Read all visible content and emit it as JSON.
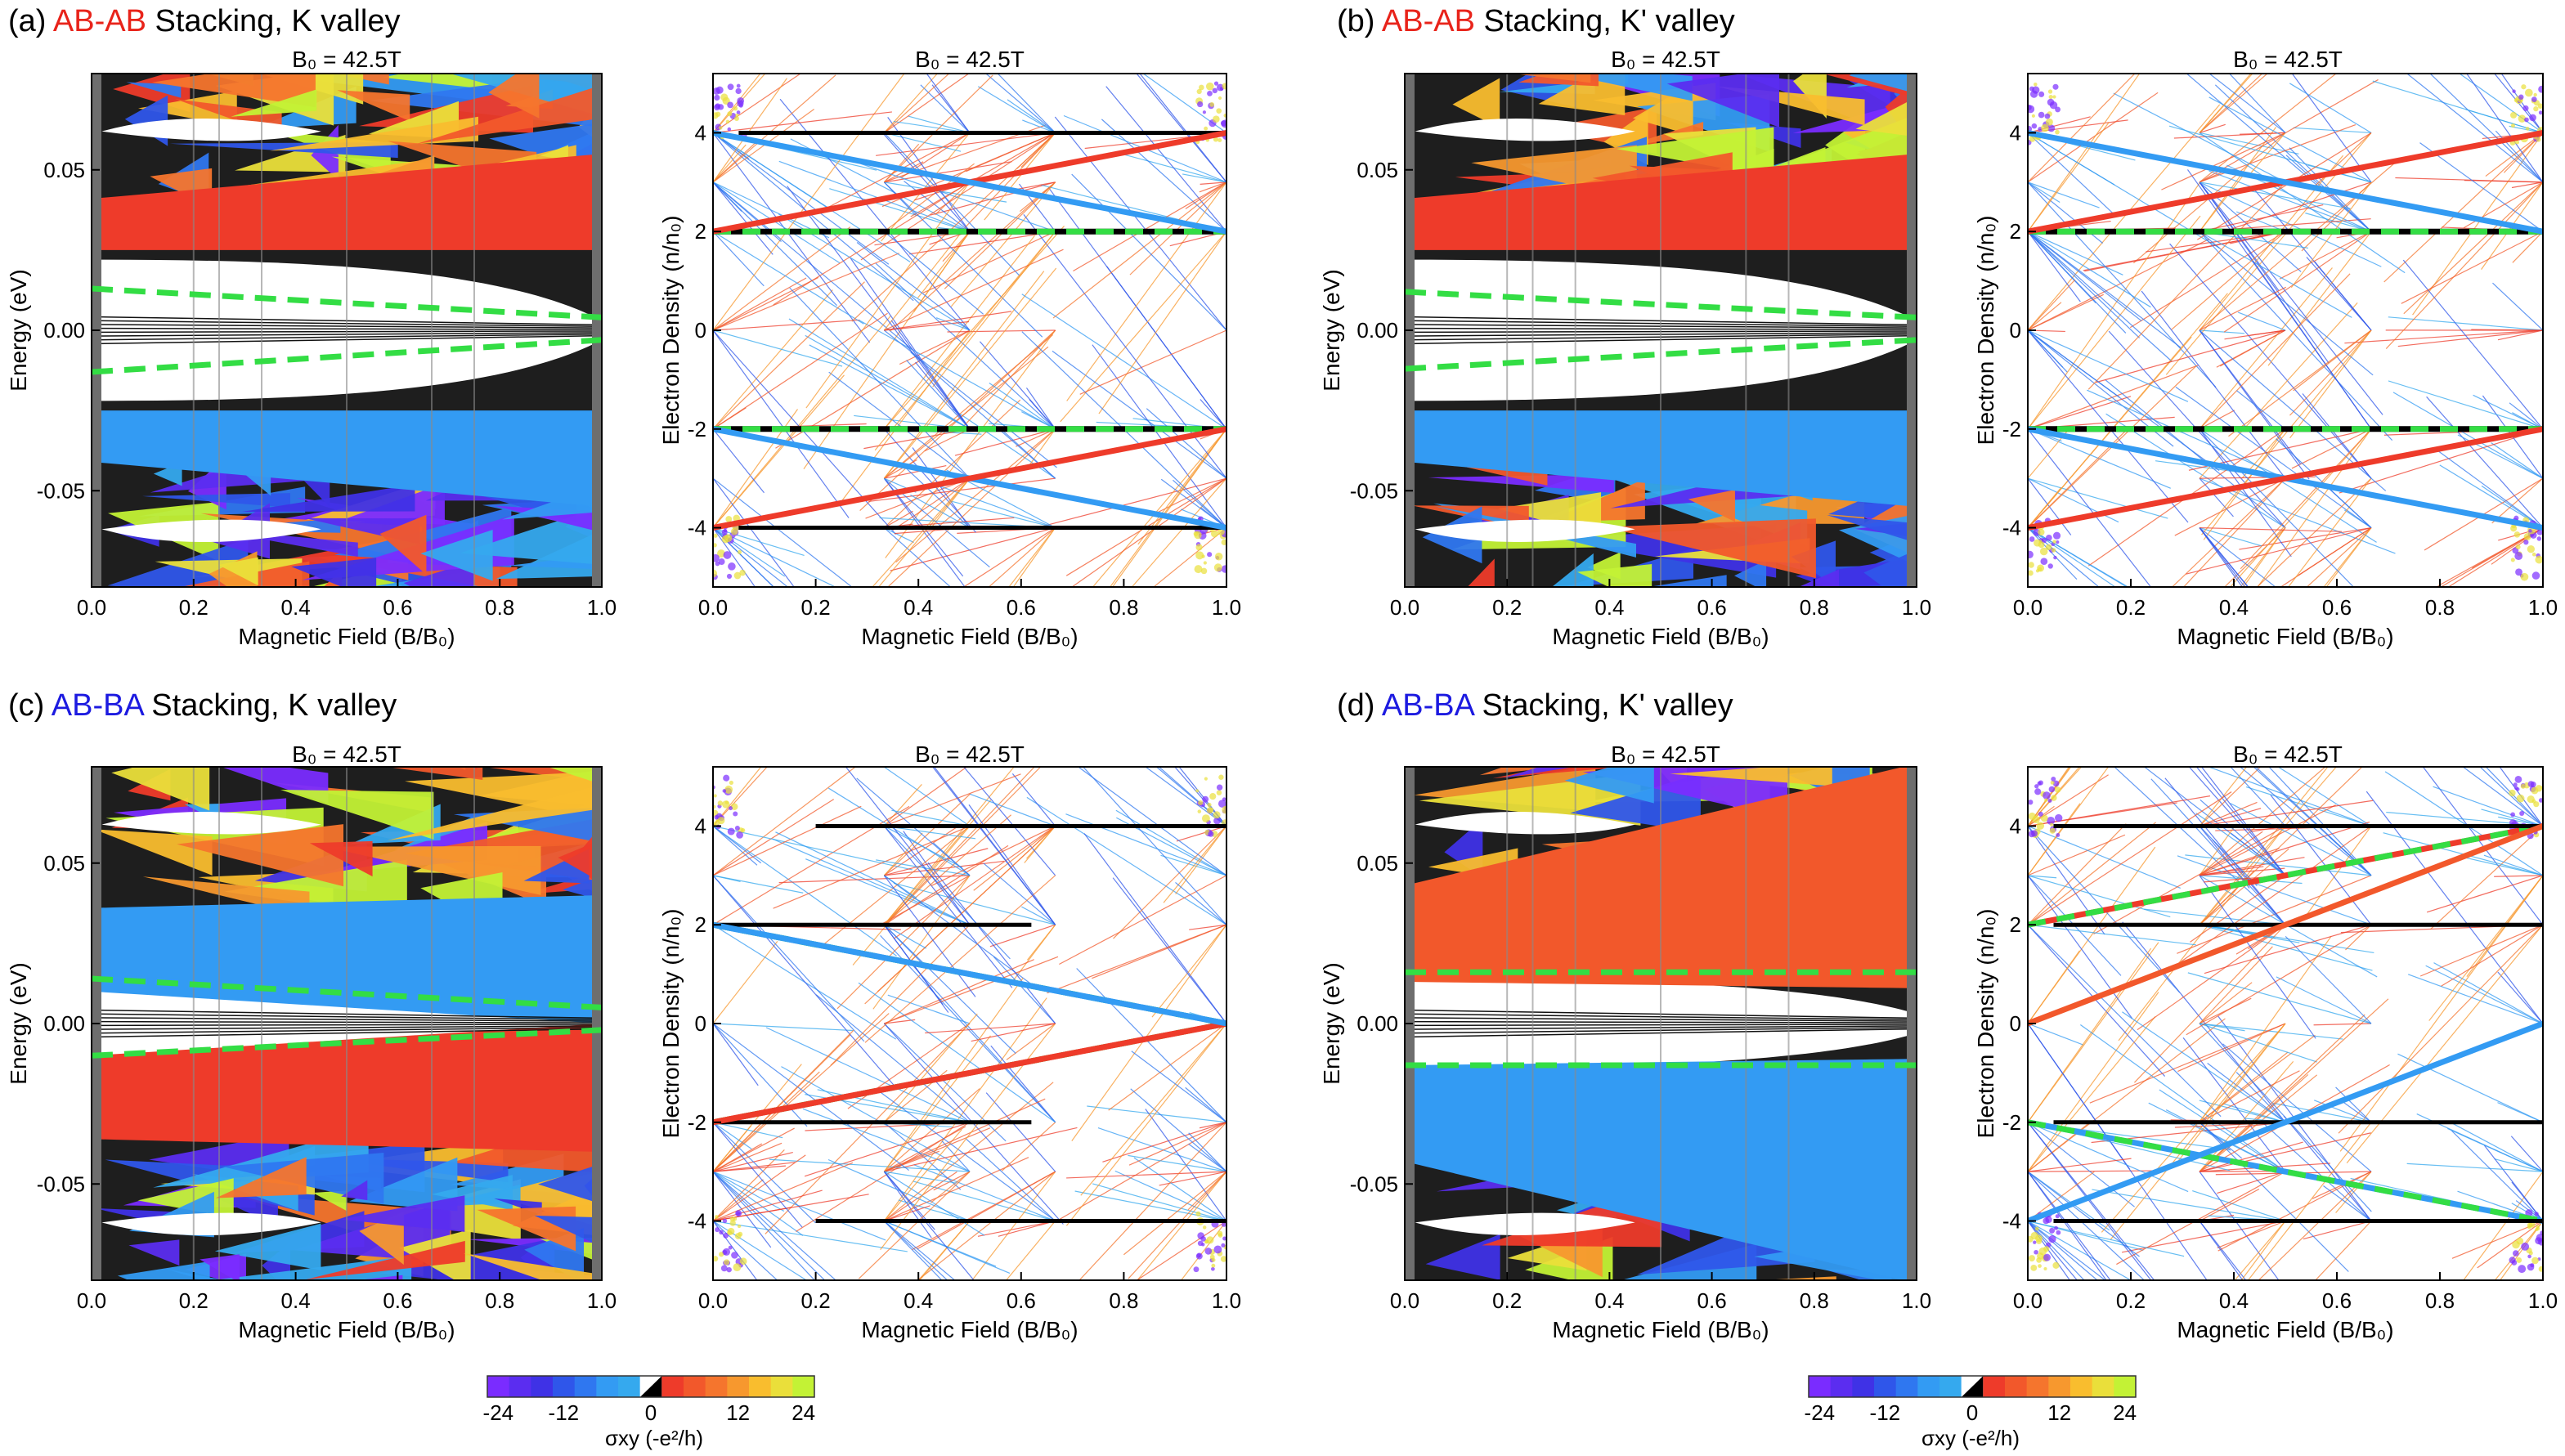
{
  "colors": {
    "neg24": "#7a2cff",
    "neg20": "#5b2df0",
    "neg16": "#3f32e6",
    "neg12": "#2f56ea",
    "neg8": "#2f77f0",
    "neg4": "#339bf3",
    "neg1": "#35a9ee",
    "pos1": "#ee3b2a",
    "pos4": "#f2582b",
    "pos8": "#f5752d",
    "pos12": "#f7982e",
    "pos16": "#f9bd2e",
    "pos20": "#eadf3a",
    "pos24": "#c3f235",
    "red_text": "#e8231a",
    "blue_text": "#1c1ae0",
    "green_dash": "#33dd44",
    "frame_gray": "#6e6e6e"
  },
  "panels": [
    {
      "id": "a",
      "prefix": "(a)",
      "stacking": "AB-AB",
      "suffix": "Stacking, K valley",
      "stacking_color": "red"
    },
    {
      "id": "b",
      "prefix": "(b)",
      "stacking": "AB-AB",
      "suffix": "Stacking, K' valley",
      "stacking_color": "red"
    },
    {
      "id": "c",
      "prefix": "(c)",
      "stacking": "AB-BA",
      "suffix": "Stacking, K valley",
      "stacking_color": "blue"
    },
    {
      "id": "d",
      "prefix": "(d)",
      "stacking": "AB-BA",
      "suffix": "Stacking, K' valley",
      "stacking_color": "blue"
    }
  ],
  "plot_title": "B₀ = 42.5T",
  "axes": {
    "energy": {
      "ylabel": "Energy (eV)",
      "xlabel": "Magnetic Field (B/B₀)",
      "xlim": [
        0,
        1.0
      ],
      "ylim": [
        -0.08,
        0.08
      ],
      "xticks": [
        "0.0",
        "0.2",
        "0.4",
        "0.6",
        "0.8",
        "1.0"
      ],
      "yticks": [
        "0.05",
        "0.00",
        "-0.05"
      ]
    },
    "density": {
      "ylabel": "Electron Density (n/n₀)",
      "xlabel": "Magnetic Field (B/B₀)",
      "xlim": [
        0,
        1.0
      ],
      "ylim": [
        -5.2,
        5.2
      ],
      "xticks": [
        "0.0",
        "0.2",
        "0.4",
        "0.6",
        "0.8",
        "1.0"
      ],
      "yticks": [
        "4",
        "2",
        "0",
        "-2",
        "-4"
      ]
    }
  },
  "colorbar": {
    "ticks": [
      "-24",
      "-12",
      "0",
      "12",
      "24"
    ],
    "label": "σxy (-e²/h)"
  },
  "chart_data": [
    {
      "panel": "a",
      "type": "heatmap",
      "kind": "Hofstadter butterfly energy spectrum",
      "xlim": [
        0,
        1
      ],
      "ylim": [
        -0.08,
        0.08
      ],
      "dashed_gap_lines": [
        {
          "x": [
            0,
            1
          ],
          "y": [
            0.013,
            0.004
          ]
        },
        {
          "x": [
            0,
            1
          ],
          "y": [
            -0.013,
            -0.003
          ]
        }
      ],
      "major_gaps": [
        {
          "sigma": 1,
          "color": "red",
          "y_start": 0.033,
          "y_end": 0.04,
          "thickness_start": 0.016,
          "thickness_end": 0.03
        },
        {
          "sigma": -1,
          "color": "blue",
          "y_start": -0.033,
          "y_end": -0.04,
          "thickness_start": 0.016,
          "thickness_end": 0.03
        }
      ]
    },
    {
      "panel": "a",
      "type": "line",
      "kind": "Wannier diagram",
      "xlim": [
        0,
        1
      ],
      "ylim": [
        -5.2,
        5.2
      ],
      "series": [
        {
          "name": "n=2 plateau",
          "x": [
            0,
            1
          ],
          "y": [
            2,
            2
          ],
          "style": "green-black dashed"
        },
        {
          "name": "n=-2 plateau",
          "x": [
            0,
            1
          ],
          "y": [
            -2,
            -2
          ],
          "style": "green-black dashed"
        },
        {
          "name": "n=4",
          "x": [
            0.05,
            1
          ],
          "y": [
            4,
            4
          ],
          "style": "black"
        },
        {
          "name": "n=-4",
          "x": [
            0.05,
            1
          ],
          "y": [
            -4,
            -4
          ],
          "style": "black"
        },
        {
          "name": "sigma=+2",
          "x": [
            0,
            1
          ],
          "y": [
            2,
            4
          ],
          "color": "red"
        },
        {
          "name": "sigma=-2",
          "x": [
            0,
            1
          ],
          "y": [
            -2,
            -4
          ],
          "color": "blue"
        },
        {
          "name": "sigma=-2 from 4",
          "x": [
            0,
            1
          ],
          "y": [
            4,
            2
          ],
          "color": "blue"
        },
        {
          "name": "sigma=+2 from -4",
          "x": [
            0,
            1
          ],
          "y": [
            -4,
            -2
          ],
          "color": "red"
        }
      ]
    },
    {
      "panel": "b",
      "type": "heatmap",
      "kind": "Hofstadter butterfly energy spectrum",
      "xlim": [
        0,
        1
      ],
      "ylim": [
        -0.08,
        0.08
      ],
      "dashed_gap_lines": [
        {
          "x": [
            0,
            1
          ],
          "y": [
            0.012,
            0.004
          ]
        },
        {
          "x": [
            0,
            1
          ],
          "y": [
            -0.012,
            -0.003
          ]
        }
      ],
      "major_gaps": [
        {
          "sigma": 1,
          "color": "red",
          "y_start": 0.033,
          "y_end": 0.04,
          "thickness_start": 0.016,
          "thickness_end": 0.03
        },
        {
          "sigma": -1,
          "color": "blue",
          "y_start": -0.033,
          "y_end": -0.04,
          "thickness_start": 0.016,
          "thickness_end": 0.03
        }
      ]
    },
    {
      "panel": "b",
      "type": "line",
      "kind": "Wannier diagram",
      "xlim": [
        0,
        1
      ],
      "ylim": [
        -5.2,
        5.2
      ],
      "series": [
        {
          "name": "n=2 plateau",
          "x": [
            0,
            1
          ],
          "y": [
            2,
            2
          ],
          "style": "green-black dashed"
        },
        {
          "name": "n=-2 plateau",
          "x": [
            0,
            1
          ],
          "y": [
            -2,
            -2
          ],
          "style": "green-black dashed"
        },
        {
          "name": "sigma=+2",
          "x": [
            0,
            1
          ],
          "y": [
            2,
            4
          ],
          "color": "red"
        },
        {
          "name": "sigma=-2",
          "x": [
            0,
            1
          ],
          "y": [
            -2,
            -4
          ],
          "color": "blue"
        },
        {
          "name": "sigma=-2 from 4",
          "x": [
            0,
            1
          ],
          "y": [
            4,
            2
          ],
          "color": "blue"
        },
        {
          "name": "sigma=+2 from -4",
          "x": [
            0,
            1
          ],
          "y": [
            -4,
            -2
          ],
          "color": "red"
        }
      ]
    },
    {
      "panel": "c",
      "type": "heatmap",
      "kind": "Hofstadter butterfly energy spectrum",
      "xlim": [
        0,
        1
      ],
      "ylim": [
        -0.08,
        0.08
      ],
      "dashed_gap_lines": [
        {
          "x": [
            0,
            1
          ],
          "y": [
            0.014,
            0.005
          ]
        },
        {
          "x": [
            0,
            1
          ],
          "y": [
            -0.01,
            -0.002
          ]
        }
      ],
      "major_gaps": [
        {
          "sigma": -1,
          "color": "blue",
          "y_start": 0.023,
          "y_end": 0.02,
          "thickness_start": 0.026,
          "thickness_end": 0.04
        },
        {
          "sigma": 1,
          "color": "red",
          "y_start": -0.023,
          "y_end": -0.02,
          "thickness_start": 0.026,
          "thickness_end": 0.04
        }
      ]
    },
    {
      "panel": "c",
      "type": "line",
      "kind": "Wannier diagram",
      "xlim": [
        0,
        1
      ],
      "ylim": [
        -5.2,
        5.2
      ],
      "series": [
        {
          "name": "n=2 to 0",
          "x": [
            0,
            1
          ],
          "y": [
            2,
            0
          ],
          "style": "green-blue dashed"
        },
        {
          "name": "n=-2 to 0",
          "x": [
            0,
            1
          ],
          "y": [
            -2,
            0
          ],
          "style": "green-red dashed"
        },
        {
          "name": "n=4",
          "x": [
            0.2,
            1
          ],
          "y": [
            4,
            4
          ],
          "style": "black"
        },
        {
          "name": "n=-4",
          "x": [
            0.2,
            1
          ],
          "y": [
            -4,
            -4
          ],
          "style": "black"
        },
        {
          "name": "n=2 plateau",
          "x": [
            0,
            0.62
          ],
          "y": [
            2,
            2
          ],
          "style": "black"
        },
        {
          "name": "n=-2 plateau",
          "x": [
            0,
            0.62
          ],
          "y": [
            -2,
            -2
          ],
          "style": "black"
        },
        {
          "name": "sigma=+2",
          "x": [
            0,
            1
          ],
          "y": [
            -2,
            0
          ],
          "color": "red"
        },
        {
          "name": "sigma=-2",
          "x": [
            0,
            1
          ],
          "y": [
            2,
            0
          ],
          "color": "blue"
        }
      ]
    },
    {
      "panel": "d",
      "type": "heatmap",
      "kind": "Hofstadter butterfly energy spectrum",
      "xlim": [
        0,
        1
      ],
      "ylim": [
        -0.08,
        0.08
      ],
      "dashed_gap_lines": [
        {
          "x": [
            0,
            1
          ],
          "y": [
            0.016,
            0.016
          ]
        },
        {
          "x": [
            0,
            1
          ],
          "y": [
            -0.013,
            -0.013
          ]
        }
      ],
      "major_gaps": [
        {
          "sigma": 2,
          "color": "orange-red",
          "y_start": 0.028,
          "y_end": 0.046,
          "thickness_start": 0.03,
          "thickness_end": 0.07
        },
        {
          "sigma": -2,
          "color": "blue",
          "y_start": -0.028,
          "y_end": -0.046,
          "thickness_start": 0.03,
          "thickness_end": 0.07
        }
      ]
    },
    {
      "panel": "d",
      "type": "line",
      "kind": "Wannier diagram",
      "xlim": [
        0,
        1
      ],
      "ylim": [
        -5.2,
        5.2
      ],
      "series": [
        {
          "name": "n=2 to 4",
          "x": [
            0,
            1
          ],
          "y": [
            2,
            4
          ],
          "style": "green-red dashed"
        },
        {
          "name": "n=-2 to -4",
          "x": [
            0,
            1
          ],
          "y": [
            -2,
            -4
          ],
          "style": "green-blue dashed"
        },
        {
          "name": "n=4",
          "x": [
            0.05,
            1
          ],
          "y": [
            4,
            4
          ],
          "style": "black"
        },
        {
          "name": "n=-4",
          "x": [
            0.05,
            1
          ],
          "y": [
            -4,
            -4
          ],
          "style": "black"
        },
        {
          "name": "n=2 plateau",
          "x": [
            0.05,
            1
          ],
          "y": [
            2,
            2
          ],
          "style": "black"
        },
        {
          "name": "n=-2 plateau",
          "x": [
            0.05,
            1
          ],
          "y": [
            -2,
            -2
          ],
          "style": "black"
        },
        {
          "name": "sigma=+4",
          "x": [
            0,
            1
          ],
          "y": [
            0,
            4
          ],
          "color": "orange-red"
        },
        {
          "name": "sigma=-4",
          "x": [
            0,
            1
          ],
          "y": [
            -4,
            0
          ],
          "color": "blue"
        }
      ]
    }
  ]
}
